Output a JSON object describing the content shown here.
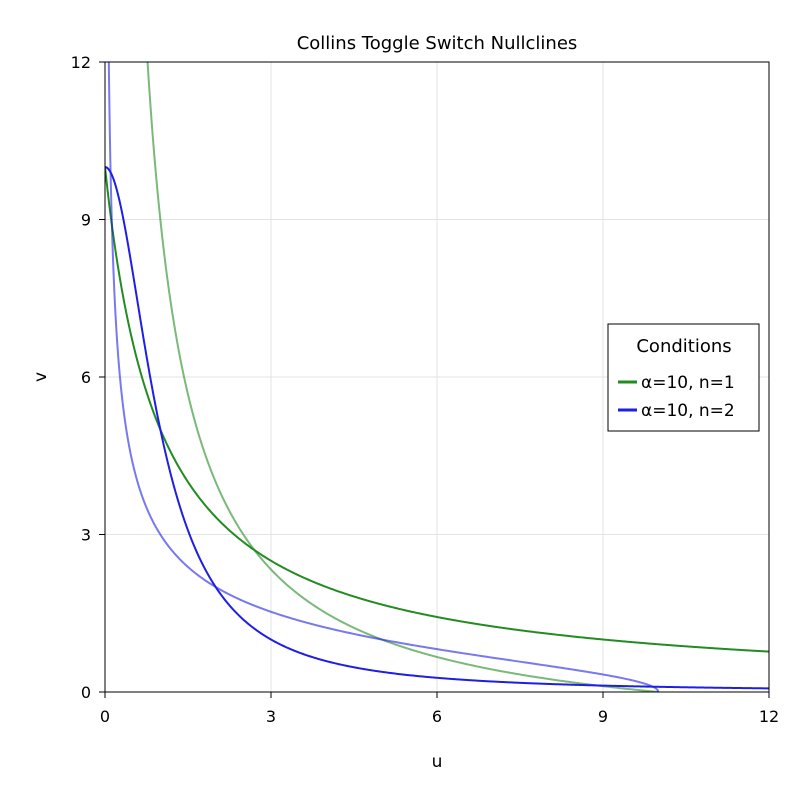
{
  "chart_data": {
    "type": "line",
    "title": "Collins Toggle Switch Nullclines",
    "xlabel": "u",
    "ylabel": "v",
    "xlim": [
      0,
      12
    ],
    "ylim": [
      0,
      12
    ],
    "xticks": [
      0,
      3,
      6,
      9,
      12
    ],
    "yticks": [
      0,
      3,
      6,
      9,
      12
    ],
    "grid": true,
    "legend": {
      "title": "Conditions",
      "placement": "right",
      "entries": [
        {
          "label": "α=10, n=1",
          "color": "#228B22"
        },
        {
          "label": "α=10, n=2",
          "color": "#1E1EE6"
        }
      ]
    },
    "series": [
      {
        "name": "α=10, n=1",
        "color": "#228B22",
        "alpha": 10,
        "n": 1,
        "nullclines": [
          {
            "x": [
              0,
              0.25,
              0.5,
              1,
              1.5,
              2,
              2.7,
              3,
              4,
              5,
              6,
              8,
              10,
              12
            ],
            "y": [
              10,
              8,
              6.67,
              5,
              4,
              3.33,
              2.7,
              2.5,
              2,
              1.67,
              1.43,
              1.11,
              0.91,
              0.77
            ]
          },
          {
            "x": [
              0.83,
              1,
              1.5,
              2,
              2.7,
              3,
              4,
              5,
              6,
              8,
              10
            ],
            "y": [
              12,
              9,
              5.67,
              4,
              2.7,
              2.33,
              1.5,
              1,
              0.67,
              0.25,
              0
            ]
          }
        ]
      },
      {
        "name": "α=10, n=2",
        "color": "#1E1EE6",
        "alpha": 10,
        "n": 2,
        "nullclines": [
          {
            "x": [
              0,
              0.25,
              0.5,
              0.75,
              1,
              1.5,
              2,
              2.5,
              3,
              4,
              5,
              6,
              8,
              10,
              12
            ],
            "y": [
              10,
              9.41,
              8,
              6.4,
              5,
              3.08,
              2,
              1.38,
              1,
              0.59,
              0.38,
              0.27,
              0.15,
              0.1,
              0.07
            ]
          },
          {
            "x": [
              0.07,
              0.1,
              0.15,
              0.27,
              0.38,
              0.59,
              1,
              1.38,
              2,
              3.08,
              5,
              6.4,
              8,
              9.41,
              10
            ],
            "y": [
              12,
              10,
              8,
              6,
              5,
              4,
              3,
              2.5,
              2,
              1.5,
              1,
              0.75,
              0.5,
              0.25,
              0
            ]
          }
        ]
      }
    ]
  }
}
